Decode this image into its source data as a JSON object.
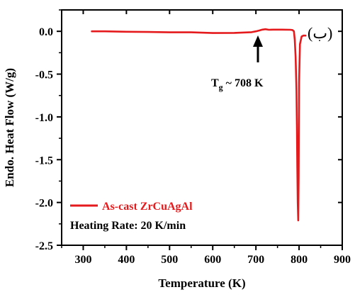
{
  "chart_data": {
    "type": "line",
    "xlabel": "Temperature (K)",
    "ylabel": "Endo. Heat Flow (W/g)",
    "xlim": [
      250,
      900
    ],
    "ylim": [
      -2.5,
      0.25
    ],
    "xticks": [
      300,
      400,
      500,
      600,
      700,
      800,
      900
    ],
    "yticks": [
      0.0,
      -0.5,
      -1.0,
      -1.5,
      -2.0,
      -2.5
    ],
    "xtick_labels": [
      "300",
      "400",
      "500",
      "600",
      "700",
      "800",
      "900"
    ],
    "ytick_labels": [
      "0.0",
      "-0.5",
      "-1.0",
      "-1.5",
      "-2.0",
      "-2.5"
    ],
    "panel_label": "(ب)",
    "legend": {
      "placement": "bottom-left",
      "entries": [
        {
          "label": "As-cast ZrCuAgAl",
          "color": "#e41a1c"
        }
      ],
      "note": "Heating Rate: 20 K/min"
    },
    "annotations": [
      {
        "text_main": "T",
        "text_sub": "g",
        "text_rest": " ~ 708 K",
        "x": 708,
        "y": -0.09
      }
    ],
    "series": [
      {
        "name": "As-cast ZrCuAgAl",
        "color": "#e41a1c",
        "x": [
          320,
          350,
          400,
          450,
          500,
          550,
          600,
          650,
          690,
          700,
          708,
          715,
          722,
          730,
          740,
          760,
          780,
          785,
          788,
          790,
          792,
          794,
          795,
          796,
          797,
          798,
          799,
          800,
          802,
          806,
          810,
          815
        ],
        "y": [
          0.0,
          0.0,
          -0.005,
          -0.008,
          -0.012,
          -0.012,
          -0.02,
          -0.018,
          -0.01,
          0.0,
          0.01,
          0.02,
          0.025,
          0.018,
          0.02,
          0.02,
          0.018,
          0.015,
          0.0,
          -0.1,
          -0.3,
          -0.7,
          -1.1,
          -1.6,
          -2.0,
          -2.21,
          -1.7,
          -0.6,
          -0.15,
          -0.06,
          -0.05,
          -0.05
        ]
      }
    ]
  }
}
